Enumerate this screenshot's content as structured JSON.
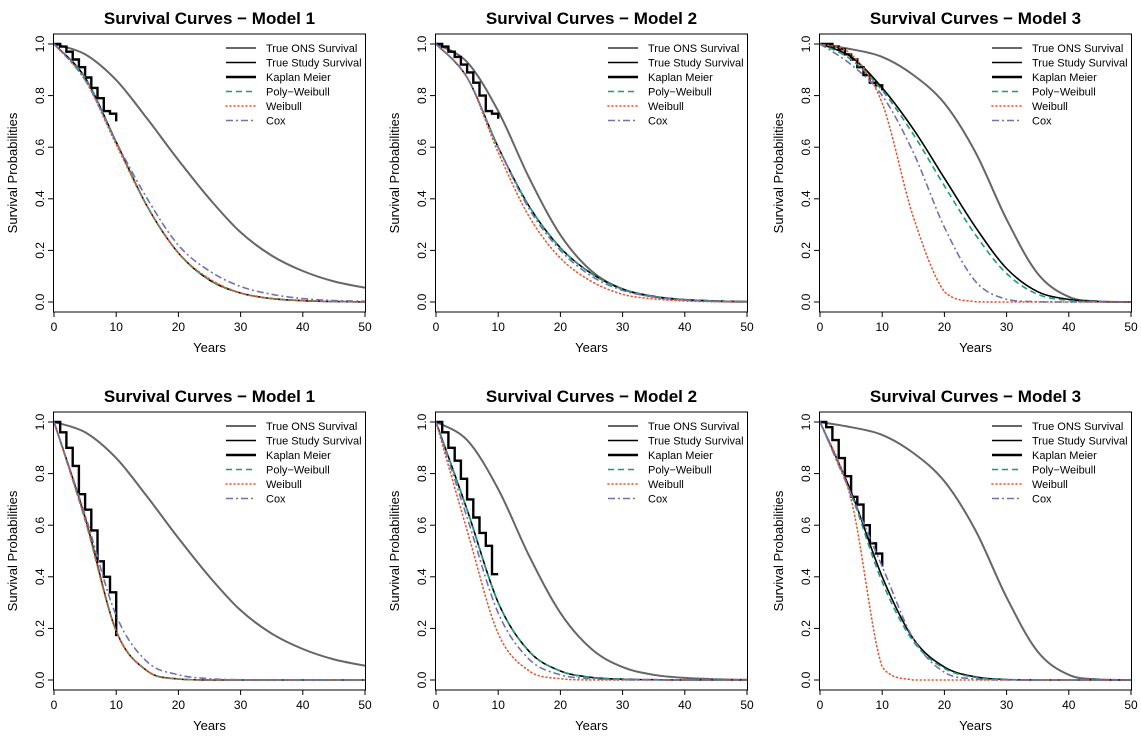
{
  "colors": {
    "ons": "#666666",
    "study": "#000000",
    "km": "#000000",
    "poly": "#1b9e77",
    "weibull": "#e8552e",
    "cox": "#7570b3"
  },
  "legend": [
    "True ONS Survival",
    "True Study Survival",
    "Kaplan Meier",
    "Poly−Weibull",
    "Weibull",
    "Cox"
  ],
  "chart_data": [
    {
      "type": "line",
      "title": "Survival Curves − Model 1",
      "xlabel": "Years",
      "ylabel": "Survival Probabilities",
      "xlim": [
        0,
        50
      ],
      "ylim": [
        0,
        1
      ],
      "xticks": [
        "0",
        "10",
        "20",
        "30",
        "40",
        "50"
      ],
      "yticks": [
        "0.0",
        "0.2",
        "0.4",
        "0.6",
        "0.8",
        "1.0"
      ],
      "legend_position": "top-right",
      "x": [
        0,
        5,
        10,
        15,
        20,
        25,
        30,
        35,
        40,
        45,
        50
      ],
      "series": [
        {
          "name": "True ONS Survival",
          "values": [
            1.0,
            0.96,
            0.86,
            0.71,
            0.55,
            0.4,
            0.27,
            0.18,
            0.12,
            0.08,
            0.055
          ]
        },
        {
          "name": "True Study Survival",
          "values": [
            1.0,
            0.87,
            0.62,
            0.37,
            0.19,
            0.085,
            0.035,
            0.013,
            0.005,
            0.002,
            0.0
          ]
        },
        {
          "name": "Kaplan Meier",
          "x": [
            0,
            1,
            2,
            3,
            4,
            5,
            6,
            7,
            8,
            9,
            10
          ],
          "values": [
            1.0,
            0.99,
            0.97,
            0.94,
            0.91,
            0.87,
            0.83,
            0.79,
            0.74,
            0.73,
            0.7
          ]
        },
        {
          "name": "Poly−Weibull",
          "values": [
            1.0,
            0.87,
            0.62,
            0.37,
            0.19,
            0.085,
            0.035,
            0.013,
            0.005,
            0.002,
            0.0
          ]
        },
        {
          "name": "Weibull",
          "values": [
            1.0,
            0.86,
            0.61,
            0.37,
            0.19,
            0.09,
            0.035,
            0.013,
            0.005,
            0.002,
            0.0
          ]
        },
        {
          "name": "Cox",
          "values": [
            1.0,
            0.86,
            0.62,
            0.4,
            0.22,
            0.12,
            0.06,
            0.03,
            0.013,
            0.006,
            0.003
          ]
        }
      ]
    },
    {
      "type": "line",
      "title": "Survival Curves − Model 2",
      "xlabel": "Years",
      "ylabel": "Survival Probabilities",
      "xlim": [
        0,
        50
      ],
      "ylim": [
        0,
        1
      ],
      "xticks": [
        "0",
        "10",
        "20",
        "30",
        "40",
        "50"
      ],
      "yticks": [
        "0.0",
        "0.2",
        "0.4",
        "0.6",
        "0.8",
        "1.0"
      ],
      "legend_position": "top-right",
      "x": [
        0,
        5,
        10,
        15,
        20,
        25,
        30,
        35,
        40,
        45,
        50
      ],
      "series": [
        {
          "name": "True ONS Survival",
          "values": [
            1.0,
            0.93,
            0.74,
            0.48,
            0.26,
            0.12,
            0.05,
            0.02,
            0.008,
            0.003,
            0.001
          ]
        },
        {
          "name": "True Study Survival",
          "values": [
            1.0,
            0.87,
            0.6,
            0.37,
            0.21,
            0.11,
            0.05,
            0.022,
            0.009,
            0.004,
            0.001
          ]
        },
        {
          "name": "Kaplan Meier",
          "x": [
            0,
            1,
            2,
            3,
            4,
            5,
            6,
            7,
            8,
            9,
            10
          ],
          "values": [
            1.0,
            0.99,
            0.97,
            0.95,
            0.92,
            0.89,
            0.85,
            0.8,
            0.74,
            0.73,
            0.71
          ]
        },
        {
          "name": "Poly−Weibull",
          "values": [
            1.0,
            0.87,
            0.6,
            0.37,
            0.21,
            0.11,
            0.05,
            0.022,
            0.009,
            0.004,
            0.001
          ]
        },
        {
          "name": "Weibull",
          "values": [
            1.0,
            0.87,
            0.58,
            0.33,
            0.17,
            0.08,
            0.03,
            0.012,
            0.004,
            0.001,
            0.0
          ]
        },
        {
          "name": "Cox",
          "values": [
            1.0,
            0.87,
            0.6,
            0.36,
            0.2,
            0.1,
            0.045,
            0.02,
            0.008,
            0.003,
            0.001
          ]
        }
      ]
    },
    {
      "type": "line",
      "title": "Survival Curves − Model 3",
      "xlabel": "Years",
      "ylabel": "Survival Probabilities",
      "xlim": [
        0,
        50
      ],
      "ylim": [
        0,
        1
      ],
      "xticks": [
        "0",
        "10",
        "20",
        "30",
        "40",
        "50"
      ],
      "yticks": [
        "0.0",
        "0.2",
        "0.4",
        "0.6",
        "0.8",
        "1.0"
      ],
      "legend_position": "top-right",
      "x": [
        0,
        5,
        10,
        15,
        20,
        25,
        30,
        35,
        40,
        45,
        50
      ],
      "series": [
        {
          "name": "True ONS Survival",
          "values": [
            1.0,
            0.98,
            0.95,
            0.88,
            0.77,
            0.58,
            0.32,
            0.11,
            0.02,
            0.002,
            0.0
          ]
        },
        {
          "name": "True Study Survival",
          "values": [
            1.0,
            0.95,
            0.83,
            0.67,
            0.48,
            0.29,
            0.13,
            0.04,
            0.01,
            0.001,
            0.0
          ]
        },
        {
          "name": "Kaplan Meier",
          "x": [
            0,
            1,
            2,
            3,
            4,
            5,
            6,
            7,
            8,
            9,
            10
          ],
          "values": [
            1.0,
            1.0,
            0.99,
            0.98,
            0.96,
            0.94,
            0.91,
            0.88,
            0.85,
            0.84,
            0.82
          ]
        },
        {
          "name": "Poly−Weibull",
          "values": [
            1.0,
            0.94,
            0.82,
            0.65,
            0.45,
            0.26,
            0.11,
            0.03,
            0.006,
            0.001,
            0.0
          ]
        },
        {
          "name": "Weibull",
          "values": [
            1.0,
            0.96,
            0.77,
            0.33,
            0.04,
            0.001,
            0.0,
            0.0,
            0.0,
            0.0,
            0.0
          ]
        },
        {
          "name": "Cox",
          "values": [
            1.0,
            0.92,
            0.8,
            0.58,
            0.29,
            0.08,
            0.01,
            0.001,
            0.0,
            0.0,
            0.0
          ]
        }
      ]
    },
    {
      "type": "line",
      "title": "Survival Curves − Model 1",
      "xlabel": "Years",
      "ylabel": "Survival Probabilities",
      "xlim": [
        0,
        50
      ],
      "ylim": [
        0,
        1
      ],
      "xticks": [
        "0",
        "10",
        "20",
        "30",
        "40",
        "50"
      ],
      "yticks": [
        "0.0",
        "0.2",
        "0.4",
        "0.6",
        "0.8",
        "1.0"
      ],
      "legend_position": "top-right",
      "x": [
        0,
        5,
        10,
        15,
        20,
        25,
        30,
        35,
        40,
        45,
        50
      ],
      "series": [
        {
          "name": "True ONS Survival",
          "values": [
            1.0,
            0.96,
            0.86,
            0.71,
            0.55,
            0.4,
            0.27,
            0.18,
            0.12,
            0.08,
            0.055
          ]
        },
        {
          "name": "True Study Survival",
          "values": [
            1.0,
            0.63,
            0.19,
            0.035,
            0.004,
            0.0,
            0.0,
            0.0,
            0.0,
            0.0,
            0.0
          ]
        },
        {
          "name": "Kaplan Meier",
          "x": [
            0,
            1,
            2,
            3,
            4,
            5,
            6,
            7,
            8,
            9,
            10
          ],
          "values": [
            1.0,
            0.96,
            0.9,
            0.83,
            0.72,
            0.66,
            0.58,
            0.46,
            0.4,
            0.34,
            0.17
          ]
        },
        {
          "name": "Poly−Weibull",
          "values": [
            1.0,
            0.62,
            0.19,
            0.035,
            0.004,
            0.0,
            0.0,
            0.0,
            0.0,
            0.0,
            0.0
          ]
        },
        {
          "name": "Weibull",
          "values": [
            1.0,
            0.62,
            0.19,
            0.035,
            0.004,
            0.0,
            0.0,
            0.0,
            0.0,
            0.0,
            0.0
          ]
        },
        {
          "name": "Cox",
          "values": [
            1.0,
            0.64,
            0.25,
            0.07,
            0.02,
            0.005,
            0.001,
            0.0,
            0.0,
            0.0,
            0.0
          ]
        }
      ]
    },
    {
      "type": "line",
      "title": "Survival Curves − Model 2",
      "xlabel": "Years",
      "ylabel": "Survival Probabilities",
      "xlim": [
        0,
        50
      ],
      "ylim": [
        0,
        1
      ],
      "xticks": [
        "0",
        "10",
        "20",
        "30",
        "40",
        "50"
      ],
      "yticks": [
        "0.0",
        "0.2",
        "0.4",
        "0.6",
        "0.8",
        "1.0"
      ],
      "legend_position": "top-right",
      "x": [
        0,
        5,
        10,
        15,
        20,
        25,
        30,
        35,
        40,
        45,
        50
      ],
      "series": [
        {
          "name": "True ONS Survival",
          "values": [
            1.0,
            0.93,
            0.74,
            0.48,
            0.26,
            0.12,
            0.05,
            0.02,
            0.008,
            0.003,
            0.001
          ]
        },
        {
          "name": "True Study Survival",
          "values": [
            1.0,
            0.66,
            0.3,
            0.11,
            0.035,
            0.01,
            0.003,
            0.001,
            0.0,
            0.0,
            0.0
          ]
        },
        {
          "name": "Kaplan Meier",
          "x": [
            0,
            1,
            2,
            3,
            4,
            5,
            6,
            7,
            8,
            9,
            10
          ],
          "values": [
            1.0,
            0.96,
            0.9,
            0.85,
            0.78,
            0.7,
            0.63,
            0.57,
            0.52,
            0.41,
            0.41
          ]
        },
        {
          "name": "Poly−Weibull",
          "values": [
            1.0,
            0.66,
            0.3,
            0.11,
            0.035,
            0.01,
            0.003,
            0.001,
            0.0,
            0.0,
            0.0
          ]
        },
        {
          "name": "Weibull",
          "values": [
            1.0,
            0.58,
            0.18,
            0.035,
            0.005,
            0.0,
            0.0,
            0.0,
            0.0,
            0.0,
            0.0
          ]
        },
        {
          "name": "Cox",
          "values": [
            1.0,
            0.63,
            0.26,
            0.08,
            0.02,
            0.005,
            0.001,
            0.0,
            0.0,
            0.0,
            0.0
          ]
        }
      ]
    },
    {
      "type": "line",
      "title": "Survival Curves − Model 3",
      "xlabel": "Years",
      "ylabel": "Survival Probabilities",
      "xlim": [
        0,
        50
      ],
      "ylim": [
        0,
        1
      ],
      "xticks": [
        "0",
        "10",
        "20",
        "30",
        "40",
        "50"
      ],
      "yticks": [
        "0.0",
        "0.2",
        "0.4",
        "0.6",
        "0.8",
        "1.0"
      ],
      "legend_position": "top-right",
      "x": [
        0,
        5,
        10,
        15,
        20,
        25,
        30,
        35,
        40,
        45,
        50
      ],
      "series": [
        {
          "name": "True ONS Survival",
          "values": [
            1.0,
            0.98,
            0.95,
            0.88,
            0.77,
            0.58,
            0.32,
            0.11,
            0.02,
            0.002,
            0.0
          ]
        },
        {
          "name": "True Study Survival",
          "values": [
            1.0,
            0.73,
            0.4,
            0.16,
            0.05,
            0.012,
            0.002,
            0.0,
            0.0,
            0.0,
            0.0
          ]
        },
        {
          "name": "Kaplan Meier",
          "x": [
            0,
            1,
            2,
            3,
            4,
            5,
            6,
            7,
            8,
            9,
            10
          ],
          "values": [
            1.0,
            0.98,
            0.93,
            0.86,
            0.79,
            0.71,
            0.68,
            0.6,
            0.53,
            0.49,
            0.44
          ]
        },
        {
          "name": "Poly−Weibull",
          "values": [
            1.0,
            0.72,
            0.38,
            0.15,
            0.045,
            0.01,
            0.002,
            0.0,
            0.0,
            0.0,
            0.0
          ]
        },
        {
          "name": "Weibull",
          "values": [
            1.0,
            0.7,
            0.05,
            0.0,
            0.0,
            0.0,
            0.0,
            0.0,
            0.0,
            0.0,
            0.0
          ]
        },
        {
          "name": "Cox",
          "values": [
            1.0,
            0.72,
            0.44,
            0.16,
            0.03,
            0.004,
            0.0,
            0.0,
            0.0,
            0.0,
            0.0
          ]
        }
      ]
    }
  ]
}
